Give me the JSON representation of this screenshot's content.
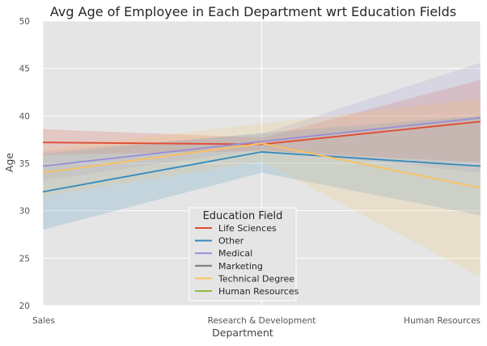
{
  "chart_data": {
    "type": "line",
    "title": "Avg Age of Employee in Each Department wrt Education Fields",
    "xlabel": "Department",
    "ylabel": "Age",
    "categories": [
      "Sales",
      "Research & Development",
      "Human Resources"
    ],
    "ylim": [
      20,
      50
    ],
    "yticks": [
      20,
      25,
      30,
      35,
      40,
      45,
      50
    ],
    "grid": true,
    "legend": {
      "title": "Education Field",
      "placement": "bottom-center"
    },
    "series": [
      {
        "name": "Life Sciences",
        "color": "#e24a33",
        "values": [
          37.2,
          37.0,
          39.4
        ],
        "ci_low": [
          35.9,
          36.3,
          35.1
        ],
        "ci_high": [
          38.6,
          37.7,
          43.8
        ]
      },
      {
        "name": "Other",
        "color": "#348abd",
        "values": [
          32.0,
          36.2,
          34.7
        ],
        "ci_low": [
          28.0,
          34.0,
          29.5
        ],
        "ci_high": [
          36.0,
          38.2,
          40.0
        ]
      },
      {
        "name": "Medical",
        "color": "#988ed5",
        "values": [
          34.7,
          37.3,
          39.8
        ],
        "ci_low": [
          33.2,
          36.5,
          34.0
        ],
        "ci_high": [
          36.3,
          38.1,
          45.6
        ]
      },
      {
        "name": "Marketing",
        "color": "#777777",
        "values": [
          null,
          null,
          null
        ],
        "ci_low": [
          null,
          null,
          null
        ],
        "ci_high": [
          null,
          null,
          null
        ]
      },
      {
        "name": "Technical Degree",
        "color": "#fbc15e",
        "values": [
          34.0,
          37.1,
          32.4
        ],
        "ci_low": [
          31.5,
          35.2,
          23.0
        ],
        "ci_high": [
          36.5,
          39.2,
          41.8
        ]
      },
      {
        "name": "Human Resources",
        "color": "#8eba42",
        "values": [
          null,
          null,
          null
        ],
        "ci_low": [
          null,
          null,
          null
        ],
        "ci_high": [
          null,
          null,
          null
        ]
      }
    ]
  }
}
